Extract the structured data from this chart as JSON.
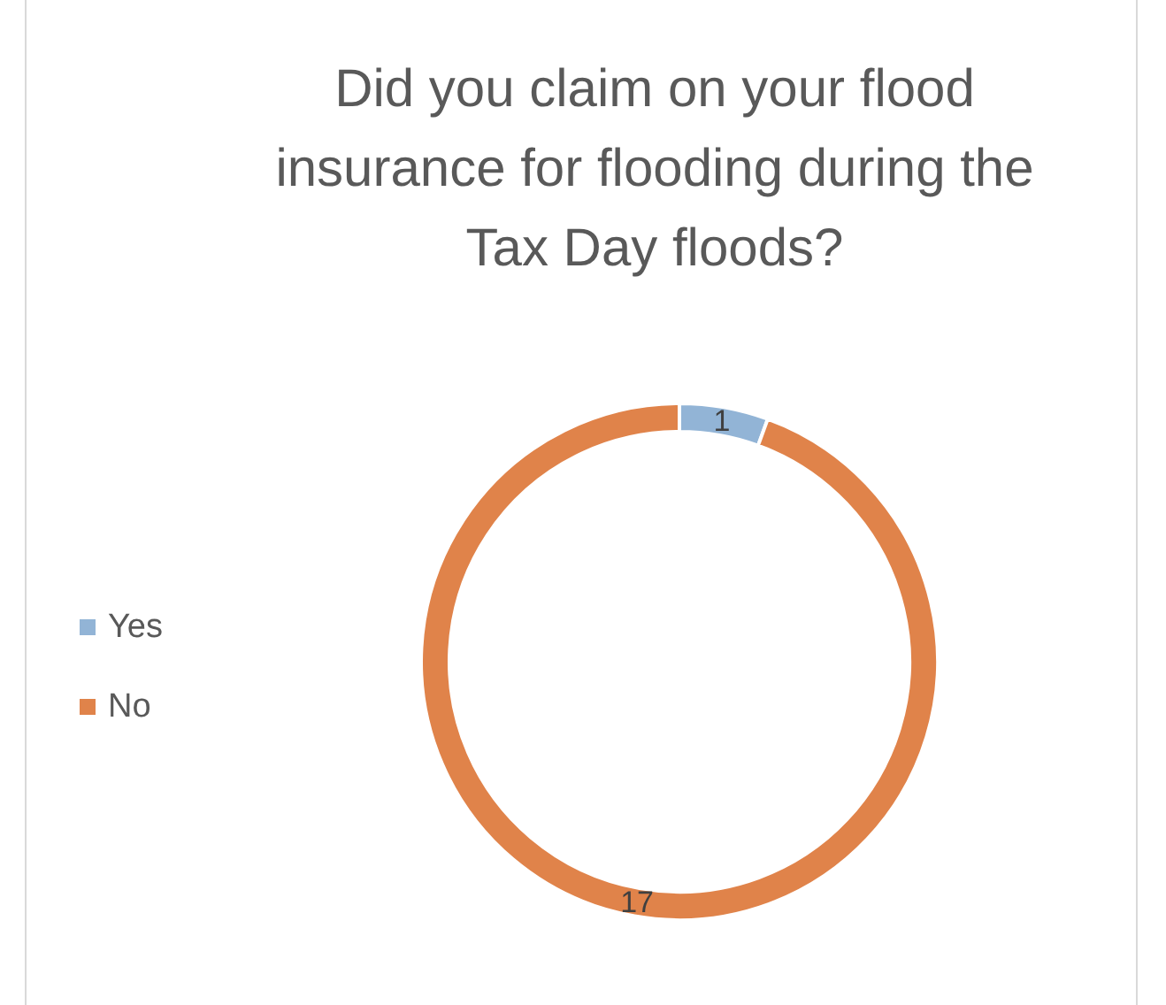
{
  "chart_data": {
    "type": "donut",
    "title": "Did you claim on your flood insurance for flooding during the Tax Day floods?",
    "categories": [
      "Yes",
      "No"
    ],
    "values": [
      1,
      17
    ],
    "colors": [
      "#92b4d6",
      "#e0834a"
    ],
    "data_labels": true,
    "legend": "left"
  }
}
